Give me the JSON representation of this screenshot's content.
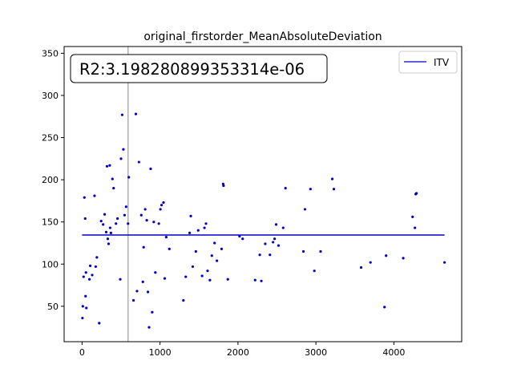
{
  "chart_data": {
    "type": "scatter",
    "title": "original_firstorder_MeanAbsoluteDeviation",
    "xlabel": "",
    "ylabel": "",
    "xlim": [
      -230,
      4870
    ],
    "ylim": [
      8,
      358
    ],
    "x_ticks": [
      0,
      1000,
      2000,
      3000,
      4000
    ],
    "y_ticks": [
      50,
      100,
      150,
      200,
      250,
      300,
      350
    ],
    "grid": false,
    "legend": {
      "position": "top-right",
      "entries": [
        "ITV"
      ]
    },
    "annotation": "R2:3.198280899353314e-06",
    "vertical_line": {
      "x": 590,
      "color": "#b0b0b0"
    },
    "series": [
      {
        "name": "ITV",
        "type": "line",
        "color": "#0000cc",
        "x": [
          0,
          4650
        ],
        "y": [
          134.5,
          134.5
        ]
      },
      {
        "type": "scatter",
        "color": "#0000cc",
        "points": [
          [
            5,
            36
          ],
          [
            10,
            50
          ],
          [
            20,
            85
          ],
          [
            30,
            179
          ],
          [
            40,
            154
          ],
          [
            45,
            62
          ],
          [
            50,
            90
          ],
          [
            55,
            48
          ],
          [
            95,
            82
          ],
          [
            105,
            98
          ],
          [
            130,
            87
          ],
          [
            160,
            181
          ],
          [
            175,
            97
          ],
          [
            190,
            108
          ],
          [
            220,
            30
          ],
          [
            245,
            151
          ],
          [
            270,
            147
          ],
          [
            290,
            159
          ],
          [
            310,
            138
          ],
          [
            320,
            216
          ],
          [
            330,
            130
          ],
          [
            340,
            124
          ],
          [
            355,
            217
          ],
          [
            360,
            143
          ],
          [
            370,
            137
          ],
          [
            390,
            201
          ],
          [
            405,
            190
          ],
          [
            435,
            148
          ],
          [
            455,
            154
          ],
          [
            490,
            82
          ],
          [
            500,
            225
          ],
          [
            515,
            277
          ],
          [
            530,
            236
          ],
          [
            545,
            158
          ],
          [
            565,
            168
          ],
          [
            590,
            148
          ],
          [
            600,
            203
          ],
          [
            660,
            57
          ],
          [
            690,
            278
          ],
          [
            705,
            68
          ],
          [
            730,
            221
          ],
          [
            760,
            158
          ],
          [
            780,
            79
          ],
          [
            790,
            120
          ],
          [
            810,
            165
          ],
          [
            830,
            152
          ],
          [
            845,
            67
          ],
          [
            860,
            25
          ],
          [
            880,
            213
          ],
          [
            900,
            43
          ],
          [
            920,
            150
          ],
          [
            940,
            90
          ],
          [
            985,
            148
          ],
          [
            1005,
            165
          ],
          [
            1020,
            170
          ],
          [
            1045,
            173
          ],
          [
            1060,
            83
          ],
          [
            1080,
            132
          ],
          [
            1120,
            118
          ],
          [
            1300,
            57
          ],
          [
            1330,
            85
          ],
          [
            1380,
            137
          ],
          [
            1395,
            157
          ],
          [
            1420,
            97
          ],
          [
            1460,
            115
          ],
          [
            1490,
            140
          ],
          [
            1540,
            86
          ],
          [
            1570,
            143
          ],
          [
            1590,
            148
          ],
          [
            1610,
            92
          ],
          [
            1640,
            81
          ],
          [
            1665,
            110
          ],
          [
            1700,
            125
          ],
          [
            1730,
            104
          ],
          [
            1790,
            118
          ],
          [
            1810,
            195
          ],
          [
            1815,
            193
          ],
          [
            1870,
            82
          ],
          [
            2020,
            133
          ],
          [
            2060,
            130
          ],
          [
            2220,
            81
          ],
          [
            2280,
            111
          ],
          [
            2300,
            80
          ],
          [
            2350,
            124
          ],
          [
            2410,
            111
          ],
          [
            2450,
            126
          ],
          [
            2470,
            130
          ],
          [
            2490,
            147
          ],
          [
            2520,
            122
          ],
          [
            2580,
            143
          ],
          [
            2610,
            190
          ],
          [
            2840,
            115
          ],
          [
            2860,
            165
          ],
          [
            2930,
            189
          ],
          [
            2980,
            92
          ],
          [
            3060,
            115
          ],
          [
            3210,
            201
          ],
          [
            3230,
            189
          ],
          [
            3580,
            96
          ],
          [
            3700,
            102
          ],
          [
            3880,
            49
          ],
          [
            3900,
            110
          ],
          [
            4120,
            107
          ],
          [
            4240,
            156
          ],
          [
            4270,
            143
          ],
          [
            4280,
            183
          ],
          [
            4290,
            184
          ],
          [
            4650,
            102
          ]
        ]
      }
    ]
  }
}
